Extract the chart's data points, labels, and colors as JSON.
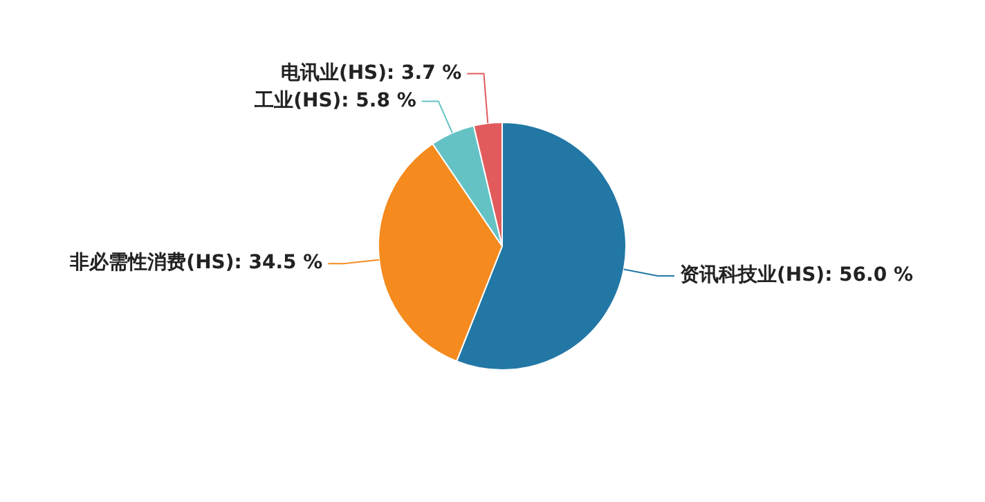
{
  "chart_data": {
    "type": "pie",
    "categories": [
      "资讯科技业(HS)",
      "非必需性消费(HS)",
      "工业(HS)",
      "电讯业(HS)"
    ],
    "values": [
      56.0,
      34.5,
      5.8,
      3.7
    ],
    "value_labels": [
      "56.0 %",
      "34.5 %",
      "5.8 %",
      "3.7 %"
    ],
    "colors": [
      "#2277a5",
      "#f58a1e",
      "#64c2c4",
      "#e15b5d"
    ],
    "legend": false
  }
}
